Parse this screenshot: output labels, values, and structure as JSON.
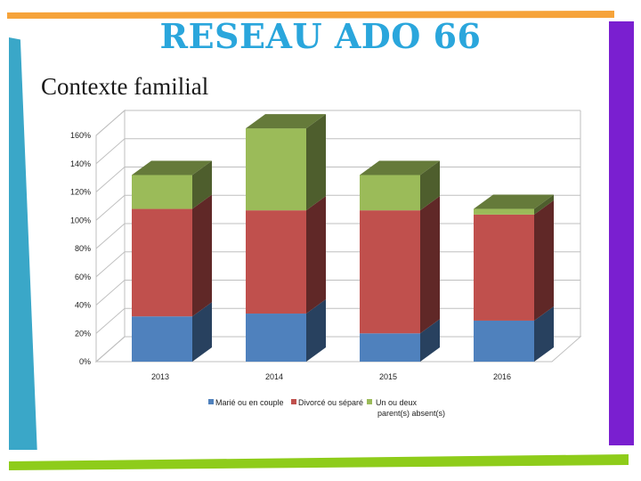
{
  "slide": {
    "title": "RESEAU ADO 66",
    "subtitle": "Contexte familial"
  },
  "colors": {
    "title": "#2aa6dc",
    "accent_orange": "#f6a33a",
    "accent_purple": "#7a1fd0",
    "accent_teal": "#3aa7c8",
    "accent_green": "#8ecc1a"
  },
  "chart_data": {
    "type": "bar",
    "stacked": true,
    "three_d": true,
    "categories": [
      "2013",
      "2014",
      "2015",
      "2016"
    ],
    "series": [
      {
        "name": "Marié ou en couple",
        "color": "#4f81bd",
        "values": [
          32,
          34,
          20,
          29
        ]
      },
      {
        "name": "Divorcé ou séparé",
        "color": "#c0504d",
        "values": [
          76,
          73,
          87,
          75
        ]
      },
      {
        "name": "Un ou deux parent(s) absent(s)",
        "color": "#9bbb59",
        "values": [
          24,
          58,
          25,
          4
        ]
      }
    ],
    "y_ticks": [
      "0%",
      "20%",
      "40%",
      "60%",
      "80%",
      "100%",
      "120%",
      "140%",
      "160%"
    ],
    "ylim": [
      0,
      160
    ],
    "grid": true,
    "legend_position": "bottom"
  }
}
